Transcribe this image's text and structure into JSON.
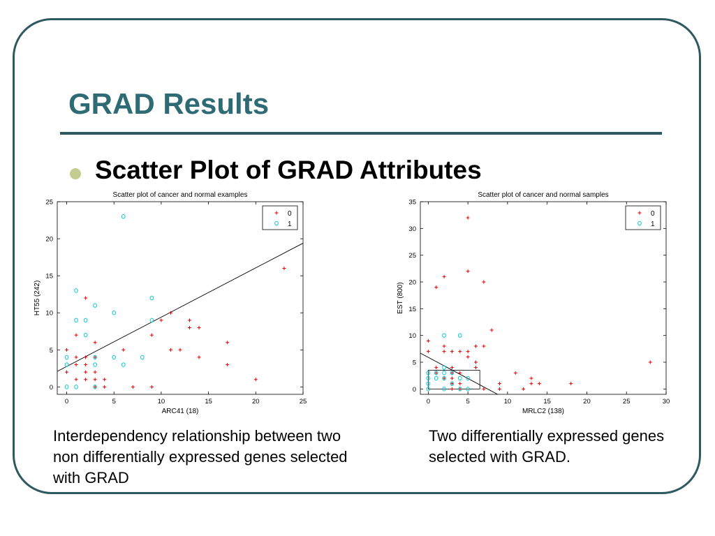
{
  "slide": {
    "title": "GRAD Results",
    "bullet": "Scatter Plot of GRAD Attributes",
    "caption_left": "Interdependency relationship  between two non differentially expressed genes selected with GRAD",
    "caption_right": "Two differentially expressed genes selected with GRAD.",
    "colors": {
      "title": "#2f6b74",
      "frame": "#2f5961",
      "bullet": "#c5cc8f"
    }
  },
  "chart_data": [
    {
      "type": "scatter",
      "title": "Scatter plot of cancer and normal examples",
      "xlabel": "ARC41 (18)",
      "ylabel": "HT55 (242)",
      "xlim": [
        -1,
        25
      ],
      "ylim": [
        -1,
        25
      ],
      "xticks": [
        0,
        5,
        10,
        15,
        20,
        25
      ],
      "yticks": [
        0,
        5,
        10,
        15,
        20,
        25
      ],
      "legend_position": "top-right",
      "series": [
        {
          "name": "0",
          "marker": "+",
          "color": "#e00000",
          "points": [
            [
              0,
              5
            ],
            [
              0,
              2
            ],
            [
              1,
              7
            ],
            [
              1,
              4
            ],
            [
              1,
              3
            ],
            [
              1,
              1
            ],
            [
              2,
              12
            ],
            [
              2,
              4
            ],
            [
              2,
              3
            ],
            [
              2,
              2
            ],
            [
              2,
              1
            ],
            [
              3,
              6
            ],
            [
              3,
              4
            ],
            [
              3,
              2
            ],
            [
              3,
              1
            ],
            [
              3,
              0
            ],
            [
              4,
              1
            ],
            [
              4,
              0
            ],
            [
              6,
              5
            ],
            [
              7,
              0
            ],
            [
              9,
              7
            ],
            [
              9,
              0
            ],
            [
              10,
              9
            ],
            [
              11,
              10
            ],
            [
              11,
              5
            ],
            [
              12,
              5
            ],
            [
              13,
              9
            ],
            [
              13,
              8
            ],
            [
              14,
              8
            ],
            [
              14,
              4
            ],
            [
              17,
              6
            ],
            [
              17,
              3
            ],
            [
              20,
              1
            ],
            [
              23,
              16
            ]
          ]
        },
        {
          "name": "1",
          "marker": "o",
          "color": "#00c8d8",
          "points": [
            [
              0,
              4
            ],
            [
              0,
              3
            ],
            [
              0,
              0
            ],
            [
              1,
              13
            ],
            [
              1,
              9
            ],
            [
              1,
              0
            ],
            [
              2,
              9
            ],
            [
              2,
              7
            ],
            [
              3,
              11
            ],
            [
              3,
              4
            ],
            [
              3,
              3
            ],
            [
              3,
              0
            ],
            [
              5,
              10
            ],
            [
              5,
              4
            ],
            [
              6,
              23
            ],
            [
              6,
              3
            ],
            [
              8,
              4
            ],
            [
              9,
              12
            ],
            [
              9,
              9
            ]
          ]
        }
      ],
      "line": {
        "x": [
          -1,
          25.3
        ],
        "y": [
          2.1,
          19.6
        ]
      }
    },
    {
      "type": "scatter",
      "title": "Scatter plot of cancer and normal samples",
      "xlabel": "MRLC2 (138)",
      "ylabel": "EST (800)",
      "xlim": [
        -1,
        30
      ],
      "ylim": [
        -1,
        35
      ],
      "xticks": [
        0,
        5,
        10,
        15,
        20,
        25,
        30
      ],
      "yticks": [
        0,
        5,
        10,
        15,
        20,
        25,
        30,
        35
      ],
      "legend_position": "top-right",
      "series": [
        {
          "name": "0",
          "marker": "+",
          "color": "#e00000",
          "points": [
            [
              0,
              9
            ],
            [
              0,
              7
            ],
            [
              1,
              19
            ],
            [
              1,
              4
            ],
            [
              1,
              3
            ],
            [
              2,
              21
            ],
            [
              2,
              8
            ],
            [
              2,
              7
            ],
            [
              2,
              2
            ],
            [
              3,
              7
            ],
            [
              3,
              4
            ],
            [
              3,
              3
            ],
            [
              3,
              2
            ],
            [
              3,
              1
            ],
            [
              3,
              0
            ],
            [
              4,
              7
            ],
            [
              4,
              3
            ],
            [
              4,
              1
            ],
            [
              4,
              0
            ],
            [
              5,
              32
            ],
            [
              5,
              22
            ],
            [
              5,
              7
            ],
            [
              5,
              6
            ],
            [
              6,
              8
            ],
            [
              6,
              5
            ],
            [
              6,
              4
            ],
            [
              7,
              20
            ],
            [
              7,
              8
            ],
            [
              7,
              0
            ],
            [
              8,
              11
            ],
            [
              9,
              1
            ],
            [
              9,
              0
            ],
            [
              11,
              3
            ],
            [
              12,
              0
            ],
            [
              13,
              2
            ],
            [
              13,
              1
            ],
            [
              14,
              1
            ],
            [
              18,
              1
            ],
            [
              28,
              5
            ]
          ]
        },
        {
          "name": "1",
          "marker": "o",
          "color": "#00c8d8",
          "points": [
            [
              0,
              3
            ],
            [
              0,
              2
            ],
            [
              0,
              1
            ],
            [
              0,
              0
            ],
            [
              1,
              3
            ],
            [
              1,
              2
            ],
            [
              2,
              10
            ],
            [
              2,
              4
            ],
            [
              2,
              3
            ],
            [
              2,
              2
            ],
            [
              2,
              0
            ],
            [
              3,
              3
            ],
            [
              3,
              1
            ],
            [
              4,
              10
            ],
            [
              4,
              2
            ],
            [
              4,
              0
            ],
            [
              5,
              2
            ],
            [
              5,
              0
            ]
          ]
        }
      ],
      "line": {
        "x": [
          -1,
          9
        ],
        "y": [
          6.7,
          -1.2
        ]
      },
      "box": {
        "x": [
          0,
          6.5
        ],
        "y": [
          0,
          3.5
        ]
      }
    }
  ]
}
